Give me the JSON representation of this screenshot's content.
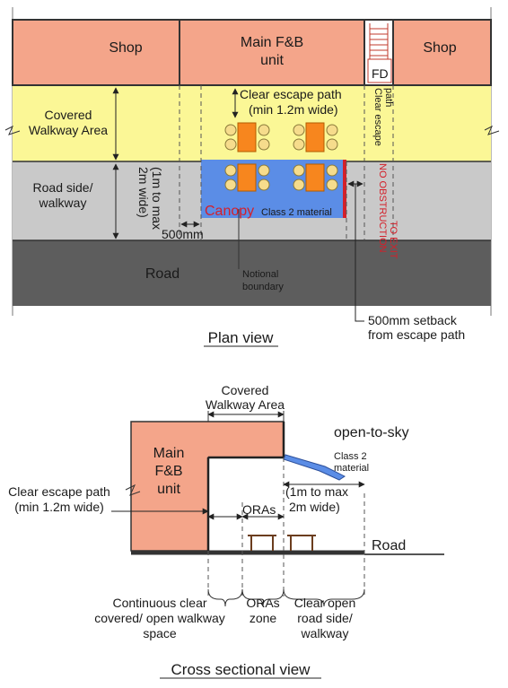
{
  "colors": {
    "shop": "#f4a58a",
    "covered_walkway": "#fbf796",
    "road_side": "#c9c9c9",
    "road": "#5d5d5d",
    "canopy": "#5b8de6",
    "table": "#f7861e",
    "chair": "#f6dc8c",
    "canopy_accent": "#d4202a"
  },
  "plan": {
    "shop_left": "Shop",
    "main_fb_line1": "Main F&B",
    "main_fb_line2": "unit",
    "fd": "FD",
    "shop_right": "Shop",
    "covered_walkway_line1": "Covered",
    "covered_walkway_line2": "Walkway Area",
    "clear_escape_line1": "Clear escape path",
    "clear_escape_line2": "(min 1.2m wide)",
    "clear_escape_vertical_line1": "Clear escape",
    "clear_escape_vertical_line2": "path",
    "road_side_line1": "Road side/",
    "road_side_line2": "walkway",
    "width_line1": "(1m to max",
    "width_line2": "2m wide)",
    "canopy": "Canopy",
    "class2": "Class 2 material",
    "no_obstruction_line1": "NO OBSTRUCTION",
    "no_obstruction_line2": "TO EXIT",
    "setback_500": "500mm",
    "road": "Road",
    "notional_line1": "Notional",
    "notional_line2": "boundary",
    "setback_note_line1": "500mm setback",
    "setback_note_line2": "from escape path",
    "title": "Plan view"
  },
  "section": {
    "covered_walkway_line1": "Covered",
    "covered_walkway_line2": "Walkway Area",
    "open_to_sky": "open-to-sky",
    "main_fb_line1": "Main",
    "main_fb_line2": "F&B",
    "main_fb_line3": "unit",
    "class2_line1": "Class 2",
    "class2_line2": "material",
    "clear_escape_line1": "Clear escape path",
    "clear_escape_line2": "(min 1.2m wide)",
    "width_line1": "(1m to max",
    "width_line2": "2m wide)",
    "oras": "ORAs",
    "road": "Road",
    "continuous_line1": "Continuous clear",
    "continuous_line2": "covered/ open walkway",
    "continuous_line3": "space",
    "oras_zone_line1": "ORAs",
    "oras_zone_line2": "zone",
    "clear_open_line1": "Clear open",
    "clear_open_line2": "road side/",
    "clear_open_line3": "walkway",
    "title": "Cross sectional view"
  }
}
